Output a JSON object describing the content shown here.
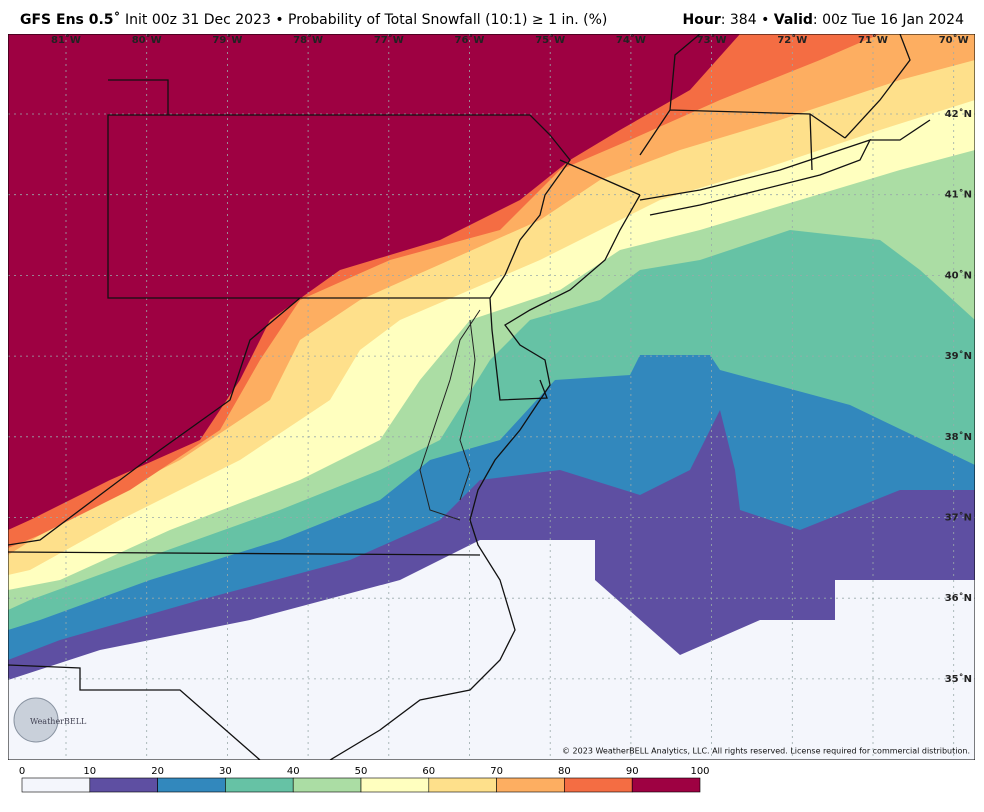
{
  "header": {
    "model": "GFS Ens 0.5˚",
    "description": "Init 00z 31 Dec 2023 • Probability of Total Snowfall (10:1) ≥ 1 in. (%)",
    "hour_label": "Hour",
    "hour_value": ": 384 • ",
    "valid_label": "Valid",
    "valid_value": ": 00z Tue 16 Jan 2024"
  },
  "map": {
    "longitudes": [
      "81˚W",
      "80˚W",
      "79˚W",
      "78˚W",
      "77˚W",
      "76˚W",
      "75˚W",
      "74˚W",
      "73˚W",
      "72˚W",
      "71˚W",
      "70˚W"
    ],
    "latitudes": [
      "42˚N",
      "41˚N",
      "40˚N",
      "39˚N",
      "38˚N",
      "37˚N",
      "36˚N",
      "35˚N"
    ],
    "copyright": "© 2023 WeatherBELL Analytics, LLC. All rights reserved. License required for commercial distribution.",
    "logo": "WeatherBELL"
  },
  "colorbar": {
    "ticks": [
      0,
      10,
      20,
      30,
      40,
      50,
      60,
      70,
      80,
      90,
      100
    ],
    "colors": [
      "#f4f6fc",
      "#5e4fa2",
      "#3288bd",
      "#66c2a5",
      "#abdda4",
      "#ffffbf",
      "#fee08b",
      "#fdae61",
      "#f46d43",
      "#9e0142"
    ]
  }
}
